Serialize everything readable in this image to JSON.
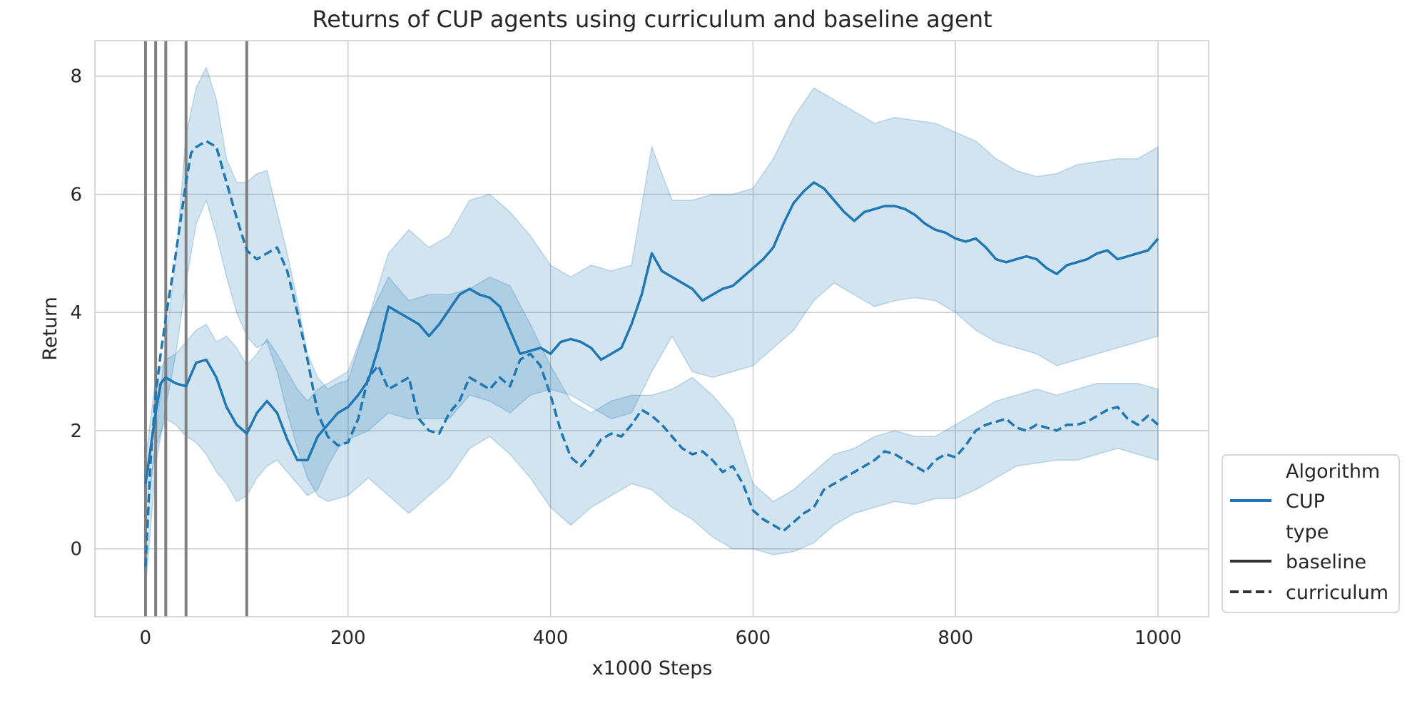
{
  "chart_data": {
    "type": "line",
    "title": "Returns of CUP agents using curriculum and baseline agent",
    "xlabel": "x1000 Steps",
    "ylabel": "Return",
    "xlim": [
      -50,
      1050
    ],
    "ylim": [
      -1.15,
      8.6
    ],
    "xticks": [
      0,
      200,
      400,
      600,
      800,
      1000
    ],
    "yticks": [
      0,
      2,
      4,
      6,
      8
    ],
    "grid": true,
    "legend_placement": "outside right, bottom",
    "legend": {
      "title_algorithm": "Algorithm",
      "algorithm_entries": [
        "CUP"
      ],
      "title_type": "type",
      "type_entries": [
        "baseline",
        "curriculum"
      ]
    },
    "vertical_markers": [
      0,
      10,
      20,
      40,
      100
    ],
    "colors": {
      "series": "#1f77b4",
      "band": "#1f77b4",
      "marker": "#808080",
      "grid": "#cccccc",
      "legend_dark": "#333333"
    },
    "series": [
      {
        "algorithm": "CUP",
        "type": "baseline",
        "style": "solid",
        "x": [
          0,
          5,
          10,
          15,
          20,
          30,
          40,
          50,
          60,
          70,
          80,
          90,
          100,
          110,
          120,
          130,
          140,
          150,
          160,
          170,
          180,
          190,
          200,
          210,
          220,
          230,
          240,
          250,
          260,
          270,
          280,
          290,
          300,
          310,
          320,
          330,
          340,
          350,
          360,
          370,
          380,
          390,
          400,
          410,
          420,
          430,
          440,
          450,
          460,
          470,
          480,
          490,
          500,
          510,
          520,
          530,
          540,
          550,
          560,
          570,
          580,
          590,
          600,
          610,
          620,
          630,
          640,
          650,
          660,
          670,
          680,
          690,
          700,
          710,
          720,
          730,
          740,
          750,
          760,
          770,
          780,
          790,
          800,
          810,
          820,
          830,
          840,
          850,
          860,
          870,
          880,
          890,
          900,
          910,
          920,
          930,
          940,
          950,
          960,
          970,
          980,
          990,
          1000
        ],
        "y": [
          1.1,
          1.7,
          2.3,
          2.8,
          2.9,
          2.8,
          2.75,
          3.15,
          3.2,
          2.9,
          2.4,
          2.1,
          1.95,
          2.3,
          2.5,
          2.3,
          1.85,
          1.5,
          1.5,
          1.9,
          2.1,
          2.3,
          2.4,
          2.6,
          2.85,
          3.4,
          4.1,
          4.0,
          3.9,
          3.8,
          3.6,
          3.8,
          4.05,
          4.3,
          4.4,
          4.3,
          4.25,
          4.1,
          3.7,
          3.3,
          3.35,
          3.4,
          3.3,
          3.5,
          3.55,
          3.5,
          3.4,
          3.2,
          3.3,
          3.4,
          3.8,
          4.3,
          5.0,
          4.7,
          4.6,
          4.5,
          4.4,
          4.2,
          4.3,
          4.4,
          4.45,
          4.6,
          4.75,
          4.9,
          5.1,
          5.5,
          5.85,
          6.05,
          6.2,
          6.1,
          5.9,
          5.7,
          5.55,
          5.7,
          5.75,
          5.8,
          5.8,
          5.75,
          5.65,
          5.5,
          5.4,
          5.35,
          5.25,
          5.2,
          5.25,
          5.1,
          4.9,
          4.85,
          4.9,
          4.95,
          4.9,
          4.75,
          4.65,
          4.8,
          4.85,
          4.9,
          5.0,
          5.05,
          4.9,
          4.95,
          5.0,
          5.05,
          5.25
        ]
      },
      {
        "algorithm": "CUP",
        "type": "curriculum",
        "style": "dashed",
        "x": [
          0,
          5,
          10,
          15,
          20,
          30,
          40,
          45,
          50,
          60,
          70,
          80,
          90,
          100,
          110,
          120,
          130,
          140,
          150,
          160,
          170,
          180,
          190,
          200,
          210,
          220,
          230,
          240,
          250,
          260,
          270,
          280,
          290,
          300,
          310,
          320,
          330,
          340,
          350,
          360,
          370,
          380,
          390,
          400,
          410,
          420,
          430,
          440,
          450,
          460,
          470,
          480,
          490,
          500,
          510,
          520,
          530,
          540,
          550,
          560,
          570,
          580,
          590,
          600,
          610,
          620,
          630,
          640,
          650,
          660,
          670,
          680,
          690,
          700,
          710,
          720,
          730,
          740,
          750,
          760,
          770,
          780,
          790,
          800,
          810,
          820,
          830,
          840,
          850,
          860,
          870,
          880,
          890,
          900,
          910,
          920,
          930,
          940,
          950,
          960,
          970,
          980,
          990,
          1000
        ],
        "y": [
          -0.3,
          1.5,
          2.6,
          3.3,
          3.9,
          5.0,
          6.2,
          6.7,
          6.8,
          6.9,
          6.8,
          6.2,
          5.6,
          5.05,
          4.9,
          5.0,
          5.1,
          4.7,
          4.0,
          3.2,
          2.3,
          1.9,
          1.75,
          1.8,
          2.2,
          2.9,
          3.1,
          2.7,
          2.8,
          2.9,
          2.2,
          2.0,
          1.95,
          2.3,
          2.5,
          2.9,
          2.8,
          2.7,
          2.9,
          2.75,
          3.2,
          3.3,
          3.1,
          2.6,
          2.0,
          1.55,
          1.4,
          1.6,
          1.85,
          1.95,
          1.9,
          2.1,
          2.35,
          2.25,
          2.1,
          1.9,
          1.7,
          1.6,
          1.65,
          1.5,
          1.3,
          1.4,
          1.1,
          0.65,
          0.5,
          0.4,
          0.3,
          0.45,
          0.6,
          0.7,
          1.0,
          1.1,
          1.2,
          1.3,
          1.4,
          1.5,
          1.65,
          1.6,
          1.5,
          1.4,
          1.3,
          1.5,
          1.6,
          1.55,
          1.75,
          2.0,
          2.1,
          2.15,
          2.2,
          2.05,
          2.0,
          2.1,
          2.05,
          2.0,
          2.1,
          2.1,
          2.15,
          2.25,
          2.35,
          2.4,
          2.2,
          2.1,
          2.25,
          2.1
        ]
      }
    ],
    "bands": [
      {
        "series": "baseline",
        "x": [
          0,
          10,
          20,
          30,
          40,
          50,
          60,
          70,
          80,
          90,
          100,
          110,
          120,
          130,
          140,
          150,
          160,
          170,
          180,
          190,
          200,
          220,
          240,
          260,
          280,
          300,
          320,
          340,
          360,
          380,
          400,
          420,
          440,
          460,
          480,
          500,
          520,
          540,
          560,
          580,
          600,
          620,
          640,
          660,
          680,
          700,
          720,
          740,
          760,
          780,
          800,
          820,
          840,
          860,
          880,
          900,
          920,
          940,
          960,
          980,
          1000
        ],
        "lower": [
          0.6,
          1.7,
          2.2,
          2.1,
          1.9,
          1.8,
          1.6,
          1.3,
          1.1,
          0.8,
          0.9,
          1.2,
          1.4,
          1.5,
          1.3,
          1.1,
          0.9,
          1.0,
          1.4,
          1.7,
          1.85,
          2.0,
          2.3,
          2.2,
          2.2,
          2.2,
          2.6,
          2.5,
          2.3,
          2.6,
          2.7,
          2.6,
          2.4,
          2.2,
          2.3,
          3.0,
          3.6,
          3.0,
          2.9,
          3.0,
          3.1,
          3.4,
          3.7,
          4.2,
          4.5,
          4.3,
          4.1,
          4.2,
          4.25,
          4.2,
          4.0,
          3.7,
          3.5,
          3.4,
          3.3,
          3.1,
          3.2,
          3.3,
          3.4,
          3.5,
          3.6
        ],
        "upper": [
          1.5,
          2.9,
          3.2,
          3.3,
          3.5,
          3.7,
          3.8,
          3.5,
          3.6,
          3.4,
          3.1,
          3.3,
          3.55,
          3.3,
          3.0,
          2.7,
          2.5,
          2.7,
          2.8,
          2.9,
          3.0,
          3.9,
          5.0,
          5.4,
          5.1,
          5.3,
          5.9,
          6.0,
          5.7,
          5.3,
          4.8,
          4.6,
          4.8,
          4.7,
          4.8,
          6.8,
          5.9,
          5.9,
          6.0,
          6.0,
          6.1,
          6.6,
          7.3,
          7.8,
          7.6,
          7.4,
          7.2,
          7.3,
          7.25,
          7.2,
          7.05,
          6.9,
          6.6,
          6.4,
          6.3,
          6.35,
          6.5,
          6.55,
          6.6,
          6.6,
          6.8
        ]
      },
      {
        "series": "curriculum",
        "x": [
          0,
          10,
          20,
          30,
          40,
          50,
          60,
          70,
          80,
          90,
          100,
          110,
          120,
          130,
          140,
          150,
          160,
          170,
          180,
          190,
          200,
          220,
          240,
          260,
          280,
          300,
          320,
          340,
          360,
          380,
          400,
          420,
          440,
          460,
          480,
          500,
          520,
          540,
          560,
          580,
          600,
          620,
          640,
          660,
          680,
          700,
          720,
          740,
          760,
          780,
          800,
          820,
          840,
          860,
          880,
          900,
          920,
          940,
          960,
          980,
          1000
        ],
        "lower": [
          -0.7,
          1.4,
          2.4,
          3.3,
          4.5,
          5.5,
          5.9,
          5.3,
          4.6,
          4.0,
          3.6,
          3.4,
          3.5,
          3.0,
          2.3,
          1.7,
          1.2,
          0.9,
          0.8,
          0.85,
          0.9,
          1.2,
          0.9,
          0.6,
          0.9,
          1.2,
          1.7,
          1.9,
          1.6,
          1.2,
          0.7,
          0.4,
          0.7,
          0.9,
          1.1,
          1.0,
          0.7,
          0.5,
          0.2,
          0.0,
          0.0,
          -0.1,
          -0.05,
          0.1,
          0.4,
          0.6,
          0.7,
          0.8,
          0.75,
          0.85,
          0.85,
          1.0,
          1.2,
          1.4,
          1.45,
          1.5,
          1.5,
          1.6,
          1.7,
          1.6,
          1.5
        ],
        "upper": [
          0.2,
          1.9,
          3.5,
          4.9,
          7.0,
          7.8,
          8.15,
          7.6,
          6.6,
          6.2,
          6.2,
          6.35,
          6.4,
          5.7,
          5.0,
          4.2,
          3.3,
          2.9,
          2.7,
          2.8,
          2.85,
          3.9,
          4.6,
          4.2,
          4.3,
          4.3,
          4.4,
          4.6,
          4.45,
          3.8,
          3.1,
          2.5,
          2.3,
          2.5,
          2.6,
          2.6,
          2.7,
          2.9,
          2.6,
          2.2,
          1.1,
          0.8,
          1.0,
          1.3,
          1.6,
          1.7,
          1.9,
          2.0,
          1.9,
          1.9,
          2.1,
          2.3,
          2.5,
          2.6,
          2.7,
          2.6,
          2.7,
          2.8,
          2.8,
          2.8,
          2.7
        ]
      }
    ]
  }
}
